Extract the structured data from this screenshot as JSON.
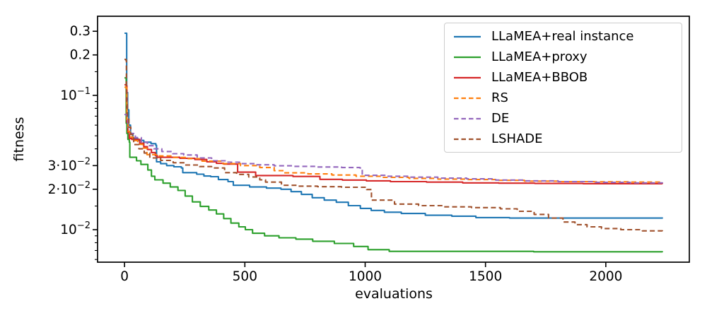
{
  "figure": {
    "background": "#ffffff",
    "spine_color": "#000000"
  },
  "chart_data": {
    "type": "line",
    "title": "",
    "xlabel": "evaluations",
    "ylabel": "fitness",
    "x_scale": "linear",
    "y_scale": "log",
    "xlim": [
      -112,
      2347
    ],
    "ylim": [
      0.00573,
      0.388
    ],
    "grid": false,
    "legend_position": "upper right",
    "x_ticks": [
      {
        "value": 0,
        "label": "0"
      },
      {
        "value": 500,
        "label": "500"
      },
      {
        "value": 1000,
        "label": "1000"
      },
      {
        "value": 1500,
        "label": "1500"
      },
      {
        "value": 2000,
        "label": "2000"
      }
    ],
    "y_ticks_major": [
      {
        "value": 0.3,
        "label": "0.3",
        "exponent": ""
      },
      {
        "value": 0.2,
        "label": "0.2",
        "exponent": ""
      },
      {
        "value": 0.1,
        "label": "10",
        "exponent": "−1"
      },
      {
        "value": 0.03,
        "label": "3·10",
        "exponent": "−2"
      },
      {
        "value": 0.02,
        "label": "2·10",
        "exponent": "−2"
      },
      {
        "value": 0.01,
        "label": "10",
        "exponent": "−2"
      }
    ],
    "y_ticks_minor": [
      0.15,
      0.09,
      0.08,
      0.07,
      0.06,
      0.05,
      0.04,
      0.015,
      0.009,
      0.008,
      0.007,
      0.006
    ],
    "series": [
      {
        "name": "LLaMEA+real instance",
        "color": "#1f77b4",
        "style": "solid",
        "points": [
          [
            0,
            0.29
          ],
          [
            8,
            0.29
          ],
          [
            9,
            0.105
          ],
          [
            13,
            0.078
          ],
          [
            18,
            0.06
          ],
          [
            25,
            0.052
          ],
          [
            35,
            0.048
          ],
          [
            55,
            0.0462
          ],
          [
            80,
            0.0448
          ],
          [
            110,
            0.0437
          ],
          [
            130,
            0.0425
          ],
          [
            133,
            0.032
          ],
          [
            150,
            0.031
          ],
          [
            175,
            0.03
          ],
          [
            205,
            0.0294
          ],
          [
            236,
            0.0288
          ],
          [
            242,
            0.0266
          ],
          [
            300,
            0.0259
          ],
          [
            330,
            0.0251
          ],
          [
            358,
            0.0248
          ],
          [
            390,
            0.0236
          ],
          [
            430,
            0.0228
          ],
          [
            452,
            0.0214
          ],
          [
            520,
            0.0208
          ],
          [
            590,
            0.0204
          ],
          [
            650,
            0.02
          ],
          [
            692,
            0.0192
          ],
          [
            735,
            0.0183
          ],
          [
            780,
            0.0173
          ],
          [
            830,
            0.0166
          ],
          [
            880,
            0.016
          ],
          [
            930,
            0.0151
          ],
          [
            980,
            0.0144
          ],
          [
            1025,
            0.0139
          ],
          [
            1080,
            0.0135
          ],
          [
            1150,
            0.0132
          ],
          [
            1250,
            0.0128
          ],
          [
            1360,
            0.0126
          ],
          [
            1460,
            0.0123
          ],
          [
            1600,
            0.0122
          ],
          [
            2235,
            0.0121
          ]
        ]
      },
      {
        "name": "LLaMEA+proxy",
        "color": "#2ca02c",
        "style": "solid",
        "points": [
          [
            0,
            0.135
          ],
          [
            6,
            0.135
          ],
          [
            7,
            0.062
          ],
          [
            10,
            0.052
          ],
          [
            14,
            0.047
          ],
          [
            20,
            0.0448
          ],
          [
            22,
            0.0346
          ],
          [
            50,
            0.0326
          ],
          [
            68,
            0.0306
          ],
          [
            97,
            0.0278
          ],
          [
            112,
            0.025
          ],
          [
            126,
            0.0235
          ],
          [
            160,
            0.0222
          ],
          [
            190,
            0.0208
          ],
          [
            222,
            0.0196
          ],
          [
            252,
            0.0178
          ],
          [
            282,
            0.0161
          ],
          [
            315,
            0.0149
          ],
          [
            350,
            0.014
          ],
          [
            382,
            0.0131
          ],
          [
            412,
            0.0121
          ],
          [
            442,
            0.0112
          ],
          [
            475,
            0.0105
          ],
          [
            502,
            0.01
          ],
          [
            532,
            0.0094
          ],
          [
            582,
            0.009
          ],
          [
            642,
            0.0087
          ],
          [
            712,
            0.0085
          ],
          [
            782,
            0.0082
          ],
          [
            872,
            0.0079
          ],
          [
            952,
            0.0075
          ],
          [
            1012,
            0.0071
          ],
          [
            1100,
            0.0069
          ],
          [
            1700,
            0.00685
          ],
          [
            2235,
            0.0068
          ]
        ]
      },
      {
        "name": "LLaMEA+BBOB",
        "color": "#d62728",
        "style": "solid",
        "points": [
          [
            0,
            0.12
          ],
          [
            8,
            0.118
          ],
          [
            10,
            0.063
          ],
          [
            14,
            0.053
          ],
          [
            20,
            0.0478
          ],
          [
            30,
            0.047
          ],
          [
            60,
            0.047
          ],
          [
            63,
            0.044
          ],
          [
            80,
            0.0415
          ],
          [
            95,
            0.0395
          ],
          [
            112,
            0.0375
          ],
          [
            128,
            0.0356
          ],
          [
            136,
            0.0346
          ],
          [
            230,
            0.034
          ],
          [
            292,
            0.0333
          ],
          [
            342,
            0.032
          ],
          [
            382,
            0.0312
          ],
          [
            412,
            0.0308
          ],
          [
            470,
            0.0268
          ],
          [
            545,
            0.0253
          ],
          [
            700,
            0.0249
          ],
          [
            812,
            0.0237
          ],
          [
            905,
            0.0234
          ],
          [
            1005,
            0.0231
          ],
          [
            1105,
            0.0228
          ],
          [
            1255,
            0.0226
          ],
          [
            1405,
            0.0223
          ],
          [
            1555,
            0.0222
          ],
          [
            1705,
            0.0221
          ],
          [
            1905,
            0.022
          ],
          [
            2235,
            0.0219
          ]
        ]
      },
      {
        "name": "RS",
        "color": "#ff7f0e",
        "style": "dashed",
        "points": [
          [
            0,
            0.115
          ],
          [
            8,
            0.113
          ],
          [
            10,
            0.066
          ],
          [
            15,
            0.054
          ],
          [
            22,
            0.049
          ],
          [
            36,
            0.046
          ],
          [
            55,
            0.0432
          ],
          [
            75,
            0.0405
          ],
          [
            93,
            0.0362
          ],
          [
            140,
            0.0354
          ],
          [
            200,
            0.0345
          ],
          [
            258,
            0.0338
          ],
          [
            322,
            0.0324
          ],
          [
            402,
            0.031
          ],
          [
            482,
            0.03
          ],
          [
            562,
            0.029
          ],
          [
            622,
            0.0275
          ],
          [
            662,
            0.0265
          ],
          [
            762,
            0.026
          ],
          [
            862,
            0.0255
          ],
          [
            962,
            0.025
          ],
          [
            1062,
            0.0245
          ],
          [
            1182,
            0.0241
          ],
          [
            1302,
            0.0238
          ],
          [
            1422,
            0.0236
          ],
          [
            1542,
            0.0233
          ],
          [
            1662,
            0.023
          ],
          [
            1802,
            0.0228
          ],
          [
            1952,
            0.0227
          ],
          [
            2102,
            0.0226
          ],
          [
            2235,
            0.0225
          ]
        ]
      },
      {
        "name": "DE",
        "color": "#9467bd",
        "style": "dashed",
        "points": [
          [
            0,
            0.072
          ],
          [
            10,
            0.07
          ],
          [
            14,
            0.058
          ],
          [
            24,
            0.052
          ],
          [
            45,
            0.0485
          ],
          [
            70,
            0.0448
          ],
          [
            95,
            0.0422
          ],
          [
            122,
            0.04
          ],
          [
            155,
            0.0382
          ],
          [
            200,
            0.0368
          ],
          [
            246,
            0.036
          ],
          [
            302,
            0.0342
          ],
          [
            362,
            0.0326
          ],
          [
            422,
            0.0318
          ],
          [
            482,
            0.031
          ],
          [
            542,
            0.0304
          ],
          [
            622,
            0.0299
          ],
          [
            702,
            0.0296
          ],
          [
            802,
            0.0293
          ],
          [
            902,
            0.029
          ],
          [
            978,
            0.0288
          ],
          [
            988,
            0.0254
          ],
          [
            1082,
            0.025
          ],
          [
            1182,
            0.0246
          ],
          [
            1302,
            0.0242
          ],
          [
            1422,
            0.0239
          ],
          [
            1542,
            0.0234
          ],
          [
            1662,
            0.0231
          ],
          [
            1802,
            0.0228
          ],
          [
            1952,
            0.0225
          ],
          [
            2102,
            0.0223
          ],
          [
            2235,
            0.0222
          ]
        ]
      },
      {
        "name": "LSHADE",
        "color": "#a0522d",
        "style": "dashed",
        "points": [
          [
            0,
            0.185
          ],
          [
            6,
            0.182
          ],
          [
            8,
            0.088
          ],
          [
            12,
            0.068
          ],
          [
            18,
            0.058
          ],
          [
            26,
            0.051
          ],
          [
            38,
            0.043
          ],
          [
            60,
            0.04
          ],
          [
            82,
            0.0372
          ],
          [
            105,
            0.0342
          ],
          [
            150,
            0.0328
          ],
          [
            202,
            0.0315
          ],
          [
            252,
            0.0303
          ],
          [
            312,
            0.0295
          ],
          [
            362,
            0.0288
          ],
          [
            416,
            0.0266
          ],
          [
            466,
            0.0258
          ],
          [
            516,
            0.0247
          ],
          [
            562,
            0.0235
          ],
          [
            586,
            0.0226
          ],
          [
            652,
            0.0214
          ],
          [
            722,
            0.0211
          ],
          [
            802,
            0.0209
          ],
          [
            902,
            0.0207
          ],
          [
            1006,
            0.0199
          ],
          [
            1026,
            0.0166
          ],
          [
            1122,
            0.0155
          ],
          [
            1222,
            0.0151
          ],
          [
            1322,
            0.0148
          ],
          [
            1442,
            0.0146
          ],
          [
            1562,
            0.0143
          ],
          [
            1632,
            0.0137
          ],
          [
            1702,
            0.013
          ],
          [
            1762,
            0.0122
          ],
          [
            1822,
            0.0114
          ],
          [
            1872,
            0.0109
          ],
          [
            1922,
            0.0105
          ],
          [
            1982,
            0.0102
          ],
          [
            2062,
            0.01
          ],
          [
            2152,
            0.0098
          ],
          [
            2235,
            0.0097
          ]
        ]
      }
    ]
  }
}
